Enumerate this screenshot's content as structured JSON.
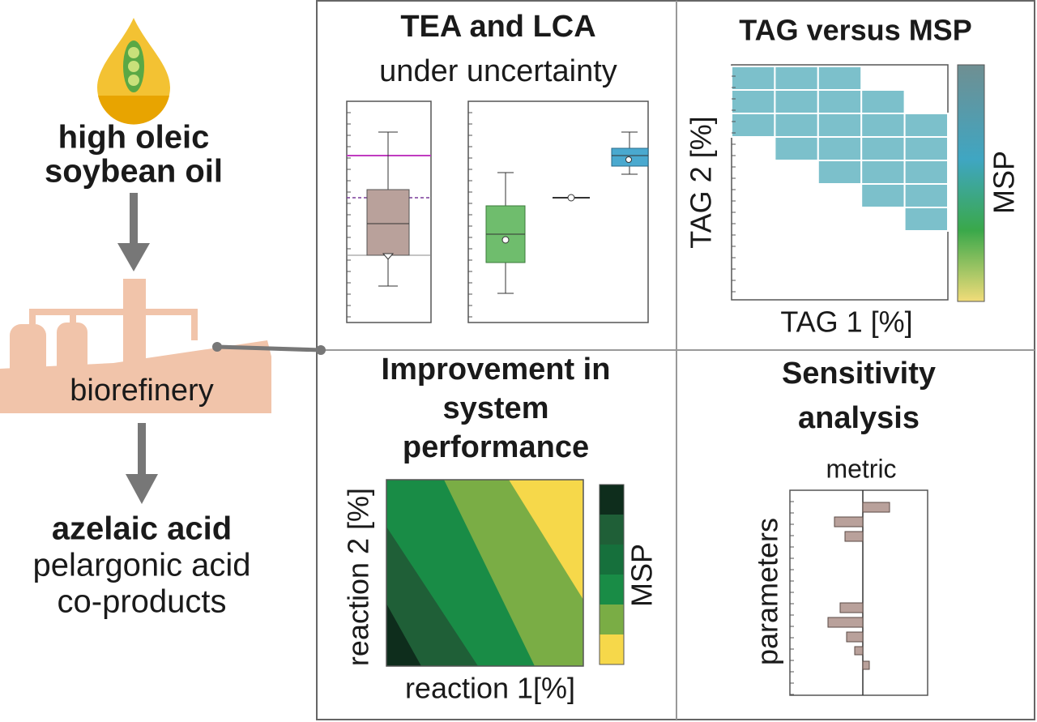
{
  "left": {
    "feedstock": [
      "high oleic",
      "soybean oil"
    ],
    "facility": "biorefinery",
    "products": {
      "main": "azelaic acid",
      "others": [
        "pelargonic acid",
        "co-products"
      ]
    }
  },
  "panels": [
    {
      "title": [
        "TEA and LCA"
      ],
      "subtitle": "under uncertainty"
    },
    {
      "title": [
        "TAG versus MSP"
      ],
      "y_label": "TAG 2 [%]",
      "x_label": "TAG 1 [%]",
      "colorbar_label": "MSP"
    },
    {
      "title": [
        "Improvement in",
        "system",
        "performance"
      ],
      "y_label": "reaction 2 [%]",
      "x_label": "reaction 1[%]",
      "colorbar_label": "MSP"
    },
    {
      "title": [
        "Sensitivity",
        "analysis"
      ],
      "x_label": "metric",
      "y_label": "parameters"
    }
  ]
}
